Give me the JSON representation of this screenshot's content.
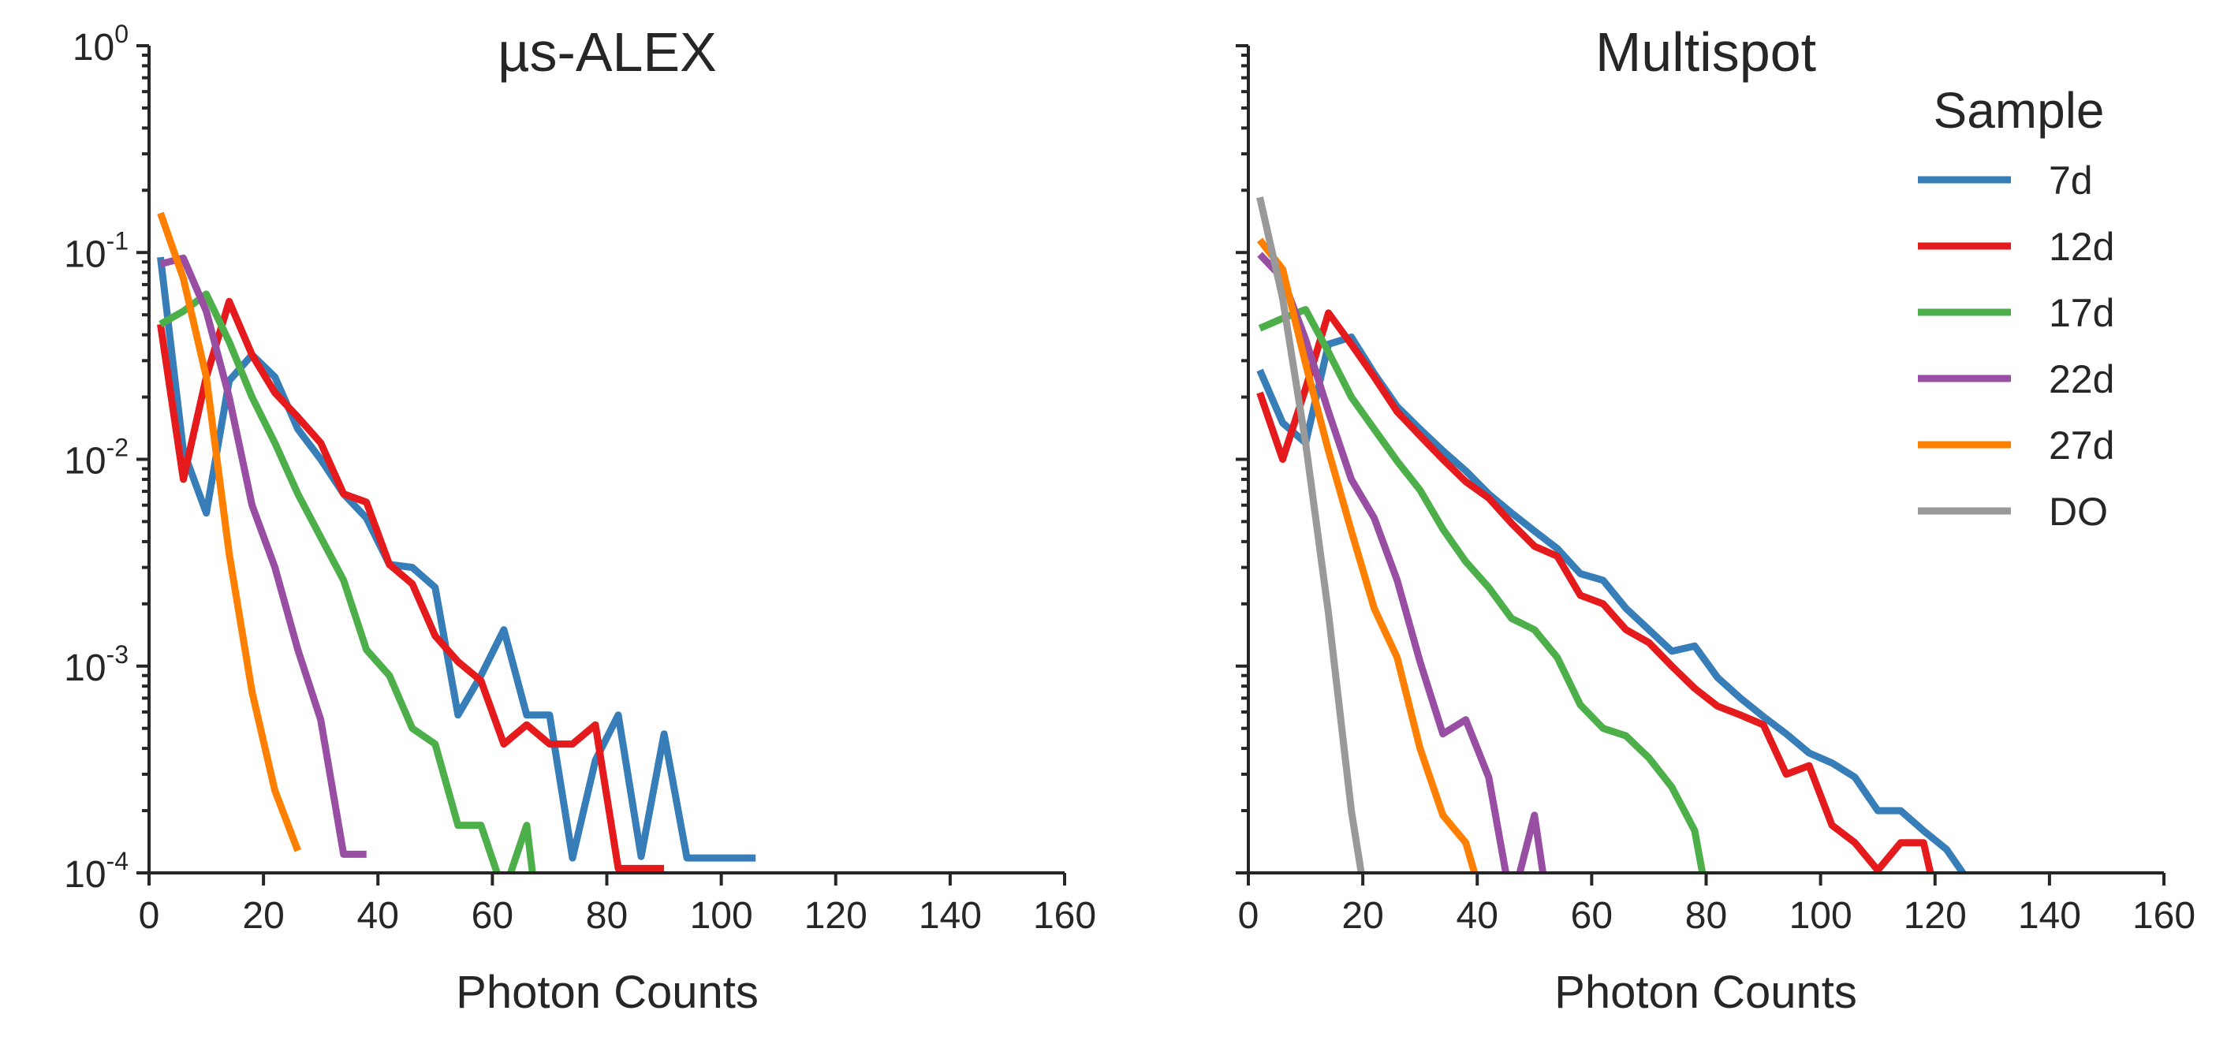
{
  "colors": {
    "7d": "#377eb8",
    "12d": "#e41a1c",
    "17d": "#4daf4a",
    "22d": "#984ea3",
    "27d": "#ff7f00",
    "DO": "#999999"
  },
  "chart_data": [
    {
      "type": "line",
      "title": "µs-ALEX",
      "xlabel": "Photon Counts",
      "ylabel": "",
      "xlim": [
        0,
        160
      ],
      "ylim": [
        0.0001,
        1
      ],
      "yscale": "log",
      "grid": false,
      "x_ticks": [
        "0",
        "20",
        "40",
        "60",
        "80",
        "100",
        "120",
        "140",
        "160"
      ],
      "y_ticks": [
        {
          "base": "10",
          "exp": "0"
        },
        {
          "base": "10",
          "exp": "-1"
        },
        {
          "base": "10",
          "exp": "-2"
        },
        {
          "base": "10",
          "exp": "-3"
        },
        {
          "base": "10",
          "exp": "-4"
        }
      ],
      "series": [
        {
          "key": "7d",
          "x": [
            2,
            6,
            10,
            14,
            18,
            22,
            26,
            30,
            34,
            38,
            42,
            46,
            50,
            54,
            58,
            62,
            66,
            70,
            74,
            78,
            82,
            86,
            90,
            94,
            98,
            102,
            106
          ],
          "y": [
            0.095,
            0.011,
            0.0055,
            0.024,
            0.032,
            0.025,
            0.014,
            0.01,
            0.0068,
            0.0052,
            0.0031,
            0.003,
            0.0024,
            0.00058,
            0.0009,
            0.0015,
            0.00058,
            0.00058,
            0.000118,
            0.00035,
            0.00058,
            0.00012,
            0.00047,
            0.000118,
            0.000118,
            0.000118,
            0.000118
          ]
        },
        {
          "key": "12d",
          "x": [
            2,
            6,
            10,
            14,
            18,
            22,
            26,
            30,
            34,
            38,
            42,
            46,
            50,
            54,
            58,
            62,
            66,
            70,
            74,
            78,
            82,
            86,
            90
          ],
          "y": [
            0.045,
            0.008,
            0.025,
            0.058,
            0.032,
            0.021,
            0.016,
            0.012,
            0.0068,
            0.0062,
            0.0031,
            0.0025,
            0.0014,
            0.00105,
            0.00085,
            0.00042,
            0.00052,
            0.00042,
            0.00042,
            0.00052,
            0.000105,
            0.000105,
            0.000105
          ]
        },
        {
          "key": "17d",
          "x": [
            2,
            6,
            10,
            14,
            18,
            22,
            26,
            30,
            34,
            38,
            42,
            46,
            50,
            54,
            58,
            62,
            66,
            68
          ],
          "y": [
            0.045,
            0.052,
            0.063,
            0.037,
            0.02,
            0.012,
            0.0068,
            0.0042,
            0.0026,
            0.0012,
            0.0009,
            0.0005,
            0.00042,
            0.00017,
            0.00017,
            8e-05,
            0.00017,
            6e-05
          ]
        },
        {
          "key": "22d",
          "x": [
            2,
            6,
            10,
            14,
            18,
            22,
            26,
            30,
            34,
            38
          ],
          "y": [
            0.088,
            0.094,
            0.052,
            0.02,
            0.006,
            0.003,
            0.0012,
            0.00055,
            0.000123,
            0.000123
          ]
        },
        {
          "key": "27d",
          "x": [
            2,
            6,
            10,
            14,
            18,
            22,
            26
          ],
          "y": [
            0.155,
            0.075,
            0.025,
            0.0035,
            0.00075,
            0.00025,
            0.000128
          ]
        }
      ]
    },
    {
      "type": "line",
      "title": "Multispot",
      "xlabel": "Photon Counts",
      "ylabel": "",
      "xlim": [
        0,
        160
      ],
      "ylim": [
        0.0001,
        1
      ],
      "yscale": "log",
      "grid": false,
      "legend": {
        "title": "Sample",
        "position": "top-right"
      },
      "x_ticks": [
        "0",
        "20",
        "40",
        "60",
        "80",
        "100",
        "120",
        "140",
        "160"
      ],
      "series": [
        {
          "key": "7d",
          "name": "7d",
          "x": [
            2,
            6,
            10,
            14,
            18,
            22,
            26,
            30,
            34,
            38,
            42,
            46,
            50,
            54,
            58,
            62,
            66,
            70,
            74,
            78,
            82,
            86,
            90,
            94,
            98,
            102,
            106,
            110,
            114,
            118,
            122,
            126
          ],
          "y": [
            0.027,
            0.015,
            0.012,
            0.036,
            0.039,
            0.026,
            0.018,
            0.014,
            0.011,
            0.0088,
            0.0068,
            0.0055,
            0.0045,
            0.0037,
            0.0028,
            0.0026,
            0.0019,
            0.0015,
            0.00118,
            0.00125,
            0.00088,
            0.0007,
            0.00057,
            0.00047,
            0.00038,
            0.00034,
            0.00029,
            0.0002,
            0.0002,
            0.00016,
            0.00013,
            9e-05
          ]
        },
        {
          "key": "12d",
          "name": "12d",
          "x": [
            2,
            6,
            10,
            14,
            18,
            22,
            26,
            30,
            34,
            38,
            42,
            46,
            50,
            54,
            58,
            62,
            66,
            70,
            74,
            78,
            82,
            86,
            90,
            94,
            98,
            102,
            106,
            110,
            114,
            118,
            120
          ],
          "y": [
            0.021,
            0.01,
            0.022,
            0.051,
            0.036,
            0.025,
            0.017,
            0.013,
            0.01,
            0.0078,
            0.0065,
            0.0049,
            0.0038,
            0.0034,
            0.0022,
            0.002,
            0.0015,
            0.0013,
            0.001,
            0.00078,
            0.00064,
            0.00058,
            0.00052,
            0.0003,
            0.00033,
            0.00017,
            0.00014,
            0.000103,
            0.00014,
            0.00014,
            8e-05
          ]
        },
        {
          "key": "17d",
          "name": "17d",
          "x": [
            2,
            6,
            10,
            14,
            18,
            22,
            26,
            30,
            34,
            38,
            42,
            46,
            50,
            54,
            58,
            62,
            66,
            70,
            74,
            78,
            80
          ],
          "y": [
            0.043,
            0.048,
            0.053,
            0.033,
            0.02,
            0.014,
            0.0098,
            0.0071,
            0.0046,
            0.0032,
            0.0024,
            0.0017,
            0.0015,
            0.0011,
            0.00065,
            0.0005,
            0.00046,
            0.00036,
            0.00026,
            0.00016,
            8e-05
          ]
        },
        {
          "key": "22d",
          "name": "22d",
          "x": [
            2,
            6,
            10,
            14,
            18,
            22,
            26,
            30,
            34,
            38,
            42,
            46,
            50,
            52
          ],
          "y": [
            0.098,
            0.075,
            0.038,
            0.017,
            0.008,
            0.0052,
            0.0026,
            0.00105,
            0.00047,
            0.00055,
            0.00029,
            7e-05,
            0.00019,
            8e-05
          ]
        },
        {
          "key": "27d",
          "name": "27d",
          "x": [
            2,
            6,
            10,
            14,
            18,
            22,
            26,
            30,
            34,
            38,
            40
          ],
          "y": [
            0.115,
            0.083,
            0.029,
            0.011,
            0.0045,
            0.0019,
            0.0011,
            0.0004,
            0.00019,
            0.00014,
            9e-05
          ]
        },
        {
          "key": "DO",
          "name": "DO",
          "x": [
            2,
            6,
            10,
            14,
            18,
            20
          ],
          "y": [
            0.185,
            0.06,
            0.012,
            0.0018,
            0.0002,
            9e-05
          ]
        }
      ]
    }
  ]
}
